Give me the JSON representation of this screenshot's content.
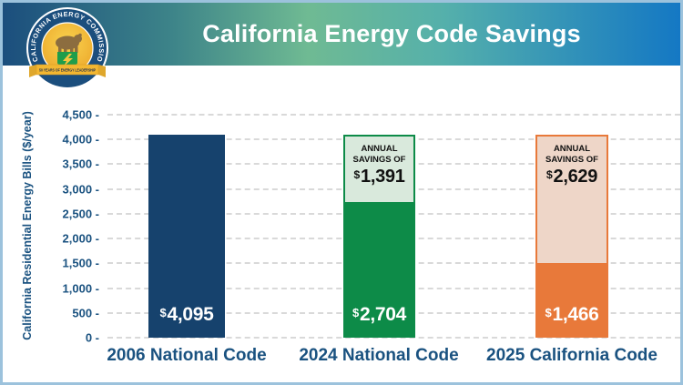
{
  "header": {
    "title": "California Energy Code Savings"
  },
  "logo": {
    "ring_text": "CALIFORNIA ENERGY COMMISSION",
    "ribbon_text": "50 YEARS OF ENERGY LEADERSHIP"
  },
  "colors": {
    "frame_border": "#9cc2dc",
    "banner_gradient_left": "#1b4e7d",
    "banner_gradient_green": "#6fba93",
    "banner_gradient_teal": "#55b0ab",
    "banner_gradient_right": "#1478c4",
    "axis_text": "#1a5280",
    "gridline": "#d9d9d9",
    "navy_bar": "#16426d",
    "green_bar": "#0d8b48",
    "green_pale": "#d9e9dc",
    "orange_bar": "#e8793a",
    "orange_pale": "#eed6c8"
  },
  "chart_data": {
    "type": "bar",
    "title": "California Energy Code Savings",
    "xlabel": "",
    "ylabel": "California Residential Energy Bills ($/year)",
    "ylim": [
      0,
      4500
    ],
    "grid": "horizontal dashed",
    "legend": "none",
    "yticks": [
      {
        "value": 0,
        "label": "0 -"
      },
      {
        "value": 500,
        "label": "500 -"
      },
      {
        "value": 1000,
        "label": "1,000 -"
      },
      {
        "value": 1500,
        "label": "1,500 -"
      },
      {
        "value": 2000,
        "label": "2,000 -"
      },
      {
        "value": 2500,
        "label": "2,500 -"
      },
      {
        "value": 3000,
        "label": "3,000 -"
      },
      {
        "value": 3500,
        "label": "3,500 -"
      },
      {
        "value": 4000,
        "label": "4,000 -"
      },
      {
        "value": 4500,
        "label": "4,500 -"
      }
    ],
    "bars": [
      {
        "category": "2006 National Code",
        "top_value": 4095,
        "bill_value": 4095,
        "bill_currency": "$",
        "bill_amount": "4,095",
        "color": "#16426d"
      },
      {
        "category": "2024 National Code",
        "top_value": 4095,
        "bill_value": 2704,
        "bill_currency": "$",
        "bill_amount": "2,704",
        "savings_value": 1391,
        "savings_heading": "ANNUAL SAVINGS OF",
        "savings_currency": "$",
        "savings_amount": "1,391",
        "color": "#0d8b48",
        "savings_bg": "#d9e9dc"
      },
      {
        "category": "2025 California Code",
        "top_value": 4095,
        "bill_value": 1466,
        "bill_currency": "$",
        "bill_amount": "1,466",
        "savings_value": 2629,
        "savings_heading": "ANNUAL SAVINGS OF",
        "savings_currency": "$",
        "savings_amount": "2,629",
        "color": "#e8793a",
        "savings_bg": "#eed6c8"
      }
    ]
  }
}
